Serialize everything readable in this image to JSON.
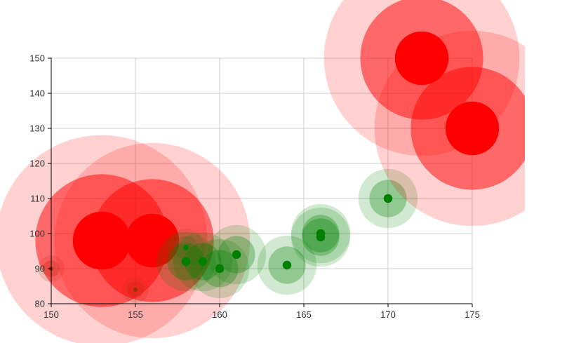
{
  "chart_data": {
    "type": "scatter",
    "title": "",
    "xlabel": "",
    "ylabel": "",
    "xlim": [
      150,
      175
    ],
    "ylim": [
      80,
      150
    ],
    "x_ticks": [
      150,
      155,
      160,
      165,
      170,
      175
    ],
    "y_ticks": [
      80,
      90,
      100,
      110,
      120,
      130,
      140,
      150
    ],
    "x_tick_labels": [
      "150",
      "155",
      "160",
      "165",
      "170",
      "175"
    ],
    "y_tick_labels": [
      "80",
      "90",
      "100",
      "110",
      "120",
      "130",
      "140",
      "150"
    ],
    "grid": true,
    "legend": "none",
    "marker": "bubble with concentric translucent halo rings",
    "colors": {
      "large": "#ff0000",
      "small": "#008000",
      "halo_small": "#7a5a2a",
      "grid": "#cccccc",
      "axis": "#000000"
    },
    "points": [
      {
        "x": 150,
        "y": 90,
        "size": 1
      },
      {
        "x": 153,
        "y": 98,
        "size": 35
      },
      {
        "x": 155,
        "y": 84,
        "size": 1
      },
      {
        "x": 156,
        "y": 98,
        "size": 30
      },
      {
        "x": 158,
        "y": 96,
        "size": 2
      },
      {
        "x": 158,
        "y": 92,
        "size": 5
      },
      {
        "x": 159,
        "y": 92,
        "size": 5
      },
      {
        "x": 160,
        "y": 90,
        "size": 5
      },
      {
        "x": 161,
        "y": 94,
        "size": 5
      },
      {
        "x": 164,
        "y": 91,
        "size": 5
      },
      {
        "x": 166,
        "y": 99,
        "size": 5
      },
      {
        "x": 166,
        "y": 100,
        "size": 5
      },
      {
        "x": 170,
        "y": 110,
        "size": 5
      },
      {
        "x": 172,
        "y": 150,
        "size": 30
      },
      {
        "x": 175,
        "y": 130,
        "size": 30
      }
    ]
  }
}
